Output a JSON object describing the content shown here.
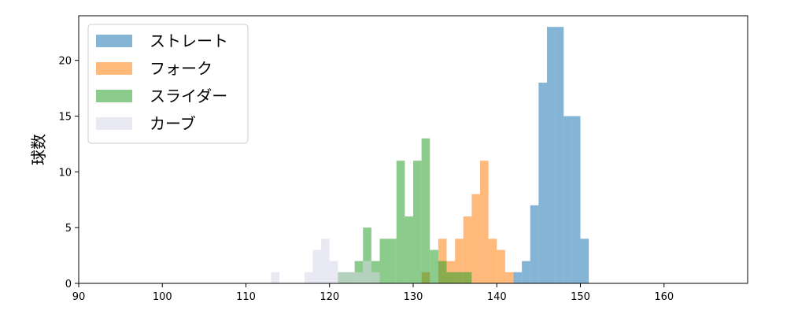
{
  "chart_data": {
    "type": "bar",
    "subtype": "histogram",
    "title": "",
    "xlabel": "",
    "ylabel": "球数",
    "xlim": [
      90,
      170
    ],
    "ylim": [
      0,
      24
    ],
    "xticks": [
      90,
      100,
      110,
      120,
      130,
      140,
      150,
      160
    ],
    "yticks": [
      0,
      5,
      10,
      15,
      20
    ],
    "grid": false,
    "bin_width": 1,
    "legend_position": "upper-left",
    "series": [
      {
        "name": "ストレート",
        "color": "#1f77b4",
        "bin_start": [
          142,
          143,
          144,
          145,
          146,
          147,
          148,
          149,
          150
        ],
        "counts": [
          1,
          2,
          7,
          18,
          23,
          23,
          15,
          15,
          4
        ]
      },
      {
        "name": "フォーク",
        "color": "#ff7f0e",
        "bin_start": [
          131,
          133,
          134,
          135,
          136,
          137,
          138,
          139,
          140,
          141
        ],
        "counts": [
          1,
          4,
          2,
          4,
          6,
          8,
          11,
          4,
          3,
          1
        ]
      },
      {
        "name": "スライダー",
        "color": "#2ca02c",
        "bin_start": [
          121,
          122,
          123,
          124,
          125,
          126,
          127,
          128,
          129,
          130,
          131,
          132,
          133,
          134,
          135,
          136
        ],
        "counts": [
          1,
          1,
          2,
          5,
          2,
          4,
          4,
          11,
          6,
          11,
          13,
          3,
          2,
          1,
          1,
          1
        ]
      },
      {
        "name": "カーブ",
        "color": "#d7d7e9",
        "bin_start": [
          113,
          117,
          118,
          119,
          120,
          121,
          122,
          123,
          124,
          125
        ],
        "counts": [
          1,
          1,
          3,
          4,
          2,
          1,
          1,
          1,
          2,
          1
        ]
      }
    ]
  }
}
